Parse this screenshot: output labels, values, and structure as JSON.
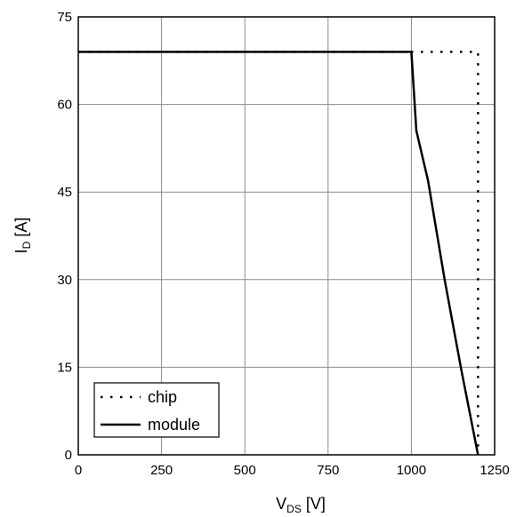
{
  "chart_data": {
    "type": "line",
    "xlabel": {
      "main": "V",
      "sub": "DS",
      "unit": "[V]"
    },
    "ylabel": {
      "main": "I",
      "sub": "D",
      "unit": "[A]"
    },
    "xlim": [
      0,
      1250
    ],
    "ylim": [
      0,
      75
    ],
    "xticks": [
      0,
      250,
      500,
      750,
      1000,
      1250
    ],
    "yticks": [
      0,
      15,
      30,
      45,
      60,
      75
    ],
    "xtick_labels": [
      "0",
      "250",
      "500",
      "750",
      "1000",
      "1250"
    ],
    "ytick_labels": [
      "0",
      "15",
      "30",
      "45",
      "60",
      "75"
    ],
    "grid": true,
    "legend_position": "bottom-left",
    "series": [
      {
        "name": "chip",
        "style": "dotted",
        "color": "#000000",
        "x": [
          0,
          1000,
          1200,
          1200
        ],
        "y": [
          69,
          69,
          69,
          0
        ]
      },
      {
        "name": "module",
        "style": "solid",
        "color": "#000000",
        "x": [
          0,
          1000,
          1015,
          1050,
          1100,
          1150,
          1200
        ],
        "y": [
          69,
          69,
          55.5,
          47,
          30,
          14.5,
          0
        ]
      }
    ]
  }
}
